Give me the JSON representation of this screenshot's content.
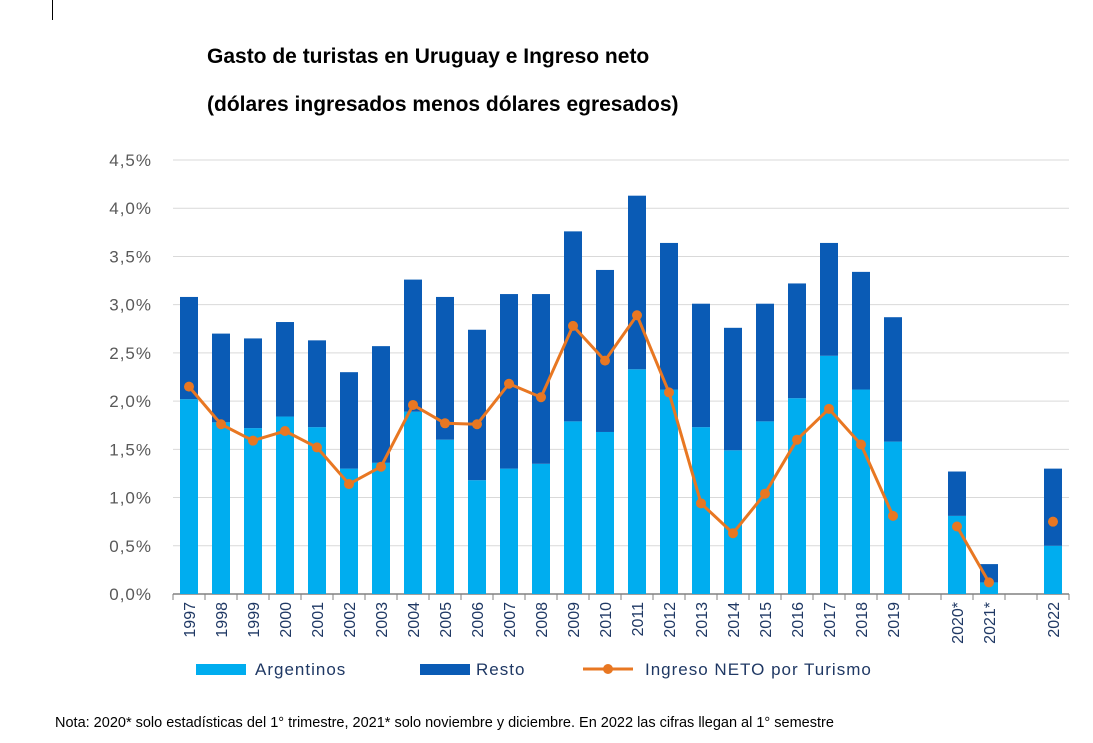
{
  "chart_data": {
    "type": "bar",
    "stacked": true,
    "title": "Gasto de turistas en Uruguay e Ingreso neto",
    "subtitle": "(dólares ingresados menos dólares egresados)",
    "categories": [
      "1997",
      "1998",
      "1999",
      "2000",
      "2001",
      "2002",
      "2003",
      "2004",
      "2005",
      "2006",
      "2007",
      "2008",
      "2009",
      "2010",
      "2011",
      "2012",
      "2013",
      "2014",
      "2015",
      "2016",
      "2017",
      "2018",
      "2019",
      "",
      "2020*",
      "2021*",
      "",
      "2022"
    ],
    "series": [
      {
        "name": "Argentinos",
        "type": "bar",
        "color": "#00adef",
        "values": [
          2.02,
          1.78,
          1.72,
          1.84,
          1.73,
          1.3,
          1.36,
          1.89,
          1.6,
          1.18,
          1.3,
          1.35,
          1.79,
          1.68,
          2.33,
          2.12,
          1.73,
          1.49,
          1.79,
          2.03,
          2.47,
          2.12,
          1.58,
          null,
          0.81,
          0.12,
          null,
          0.5
        ]
      },
      {
        "name": "Resto",
        "type": "bar",
        "color": "#0a5bb5",
        "values": [
          1.06,
          0.92,
          0.93,
          0.98,
          0.9,
          1.0,
          1.21,
          1.37,
          1.48,
          1.56,
          1.81,
          1.76,
          1.97,
          1.68,
          1.8,
          1.52,
          1.28,
          1.27,
          1.22,
          1.19,
          1.17,
          1.22,
          1.29,
          null,
          0.46,
          0.19,
          null,
          0.8
        ]
      },
      {
        "name": "Ingreso NETO por Turismo",
        "type": "line",
        "color": "#e87722",
        "values": [
          2.15,
          1.76,
          1.59,
          1.69,
          1.52,
          1.14,
          1.32,
          1.96,
          1.77,
          1.76,
          2.18,
          2.04,
          2.78,
          2.42,
          2.89,
          2.09,
          0.94,
          0.63,
          1.04,
          1.6,
          1.92,
          1.55,
          0.81,
          null,
          0.7,
          0.12,
          null,
          0.75
        ]
      }
    ],
    "yticks": [
      "0,0%",
      "0,5%",
      "1,0%",
      "1,5%",
      "2,0%",
      "2,5%",
      "3,0%",
      "3,5%",
      "4,0%",
      "4,5%"
    ],
    "ylim": [
      0,
      4.5
    ],
    "grid": true,
    "legend": "bottom",
    "xlabel": "",
    "ylabel": ""
  },
  "note": "Nota: 2020* solo estadísticas del 1° trimestre, 2021* solo noviembre y diciembre. En 2022 las cifras llegan al 1° semestre"
}
